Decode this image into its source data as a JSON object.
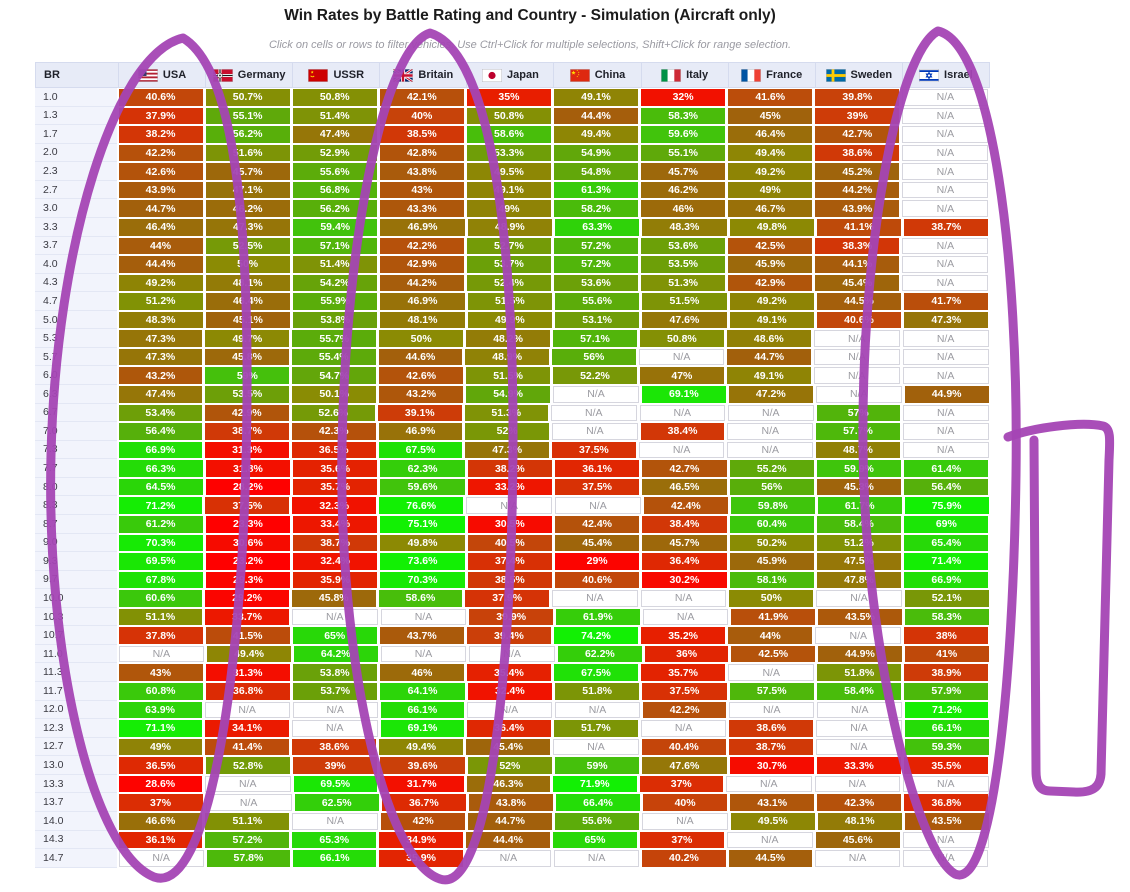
{
  "title": "Win Rates by Battle Rating and Country - Simulation (Aircraft only)",
  "subtitle": "Click on cells or rows to filter vehicles. Use Ctrl+Click for multiple selections, Shift+Click for range selection.",
  "annotation": {
    "color": "#a444b4",
    "shapes": [
      "circle-usa-column",
      "circle-ussr-column",
      "circle-sweden-israel-columns",
      "bracket-right-margin"
    ]
  },
  "chart_data": {
    "type": "heatmap",
    "title": "Win Rates by Battle Rating and Country - Simulation (Aircraft only)",
    "br_label": "BR",
    "na_label": "N/A",
    "value_suffix": "%",
    "color_scale": {
      "low_value": 28,
      "mid_value": 50,
      "high_value": 72,
      "low_color": "#ff0000",
      "mid_color": "#8b8b04",
      "high_color": "#12f004"
    },
    "columns": [
      {
        "label": "USA",
        "flag": "usa"
      },
      {
        "label": "Germany",
        "flag": "germany"
      },
      {
        "label": "USSR",
        "flag": "ussr"
      },
      {
        "label": "Britain",
        "flag": "britain"
      },
      {
        "label": "Japan",
        "flag": "japan"
      },
      {
        "label": "China",
        "flag": "china"
      },
      {
        "label": "Italy",
        "flag": "italy"
      },
      {
        "label": "France",
        "flag": "france"
      },
      {
        "label": "Sweden",
        "flag": "sweden"
      },
      {
        "label": "Israel",
        "flag": "israel"
      }
    ],
    "rows": [
      {
        "br": "1.0",
        "values": [
          40.6,
          50.7,
          50.8,
          42.1,
          35,
          49.1,
          32,
          41.6,
          39.8,
          null
        ]
      },
      {
        "br": "1.3",
        "values": [
          37.9,
          55.1,
          51.4,
          40,
          50.8,
          44.4,
          58.3,
          45,
          39,
          null
        ]
      },
      {
        "br": "1.7",
        "values": [
          38.2,
          56.2,
          47.4,
          38.5,
          58.6,
          49.4,
          59.6,
          46.4,
          42.7,
          null
        ]
      },
      {
        "br": "2.0",
        "values": [
          42.2,
          51.6,
          52.9,
          42.8,
          53.3,
          54.9,
          55.1,
          49.4,
          38.6,
          null
        ]
      },
      {
        "br": "2.3",
        "values": [
          42.6,
          45.7,
          55.6,
          43.8,
          49.5,
          54.8,
          45.7,
          49.2,
          45.2,
          null
        ]
      },
      {
        "br": "2.7",
        "values": [
          43.9,
          47.1,
          56.8,
          43,
          49.1,
          61.3,
          46.2,
          49,
          44.2,
          null
        ]
      },
      {
        "br": "3.0",
        "values": [
          44.7,
          46.2,
          56.2,
          43.3,
          49,
          58.2,
          46,
          46.7,
          43.9,
          null
        ]
      },
      {
        "br": "3.3",
        "values": [
          46.4,
          47.3,
          59.4,
          46.9,
          48.9,
          63.3,
          48.3,
          49.8,
          41.1,
          38.7
        ]
      },
      {
        "br": "3.7",
        "values": [
          44,
          52.5,
          57.1,
          42.2,
          52.7,
          57.2,
          53.6,
          42.5,
          38.3,
          null
        ]
      },
      {
        "br": "4.0",
        "values": [
          44.4,
          50,
          51.4,
          42.9,
          53.7,
          57.2,
          53.5,
          45.9,
          44.1,
          null
        ]
      },
      {
        "br": "4.3",
        "values": [
          49.2,
          48.1,
          54.2,
          44.2,
          52.4,
          53.6,
          51.3,
          42.9,
          45.4,
          null
        ]
      },
      {
        "br": "4.7",
        "values": [
          51.2,
          46.4,
          55.9,
          46.9,
          51.5,
          55.6,
          51.5,
          49.2,
          44.5,
          41.7
        ]
      },
      {
        "br": "5.0",
        "values": [
          48.3,
          45.1,
          53.8,
          48.1,
          49.9,
          53.1,
          47.6,
          49.1,
          40.6,
          47.3
        ]
      },
      {
        "br": "5.3",
        "values": [
          47.3,
          49.7,
          55.7,
          50,
          48.2,
          57.1,
          50.8,
          48.6,
          null,
          null
        ]
      },
      {
        "br": "5.7",
        "values": [
          47.3,
          45.8,
          55.4,
          44.6,
          48.9,
          56,
          null,
          44.7,
          null,
          null
        ]
      },
      {
        "br": "6.0",
        "values": [
          43.2,
          59,
          54.7,
          42.6,
          51.5,
          52.2,
          47,
          49.1,
          null,
          null
        ]
      },
      {
        "br": "6.3",
        "values": [
          47.4,
          53.5,
          50.1,
          43.2,
          54.9,
          null,
          69.1,
          47.2,
          null,
          44.9
        ]
      },
      {
        "br": "6.7",
        "values": [
          53.4,
          42.9,
          52.6,
          39.1,
          51.3,
          null,
          null,
          null,
          57,
          null
        ]
      },
      {
        "br": "7.0",
        "values": [
          56.4,
          38.7,
          42.3,
          46.9,
          52,
          null,
          38.4,
          null,
          57.7,
          null
        ]
      },
      {
        "br": "7.3",
        "values": [
          66.9,
          31.3,
          36.5,
          67.5,
          47.3,
          37.5,
          null,
          null,
          48.7,
          null
        ]
      },
      {
        "br": "7.7",
        "values": [
          66.3,
          31.8,
          35.6,
          62.3,
          38.2,
          36.1,
          42.7,
          55.2,
          59.9,
          61.4
        ]
      },
      {
        "br": "8.0",
        "values": [
          64.5,
          28.2,
          35.7,
          59.6,
          33.2,
          37.5,
          46.5,
          56,
          45.3,
          56.4
        ]
      },
      {
        "br": "8.3",
        "values": [
          71.2,
          37.5,
          32.3,
          76.6,
          null,
          null,
          42.4,
          59.8,
          61.7,
          75.9
        ]
      },
      {
        "br": "8.7",
        "values": [
          61.2,
          23.3,
          33.4,
          75.1,
          30.5,
          42.4,
          38.4,
          60.4,
          58.4,
          69
        ]
      },
      {
        "br": "9.0",
        "values": [
          70.3,
          30.6,
          38.7,
          49.8,
          40.5,
          45.4,
          45.7,
          50.2,
          51.2,
          65.4
        ]
      },
      {
        "br": "9.3",
        "values": [
          69.5,
          23.2,
          32.4,
          73.6,
          37.4,
          29,
          36.4,
          45.9,
          47.5,
          71.4
        ]
      },
      {
        "br": "9.7",
        "values": [
          67.8,
          29.3,
          35.9,
          70.3,
          38.5,
          40.6,
          30.2,
          58.1,
          47.8,
          66.9
        ]
      },
      {
        "br": "10.0",
        "values": [
          60.6,
          29.2,
          45.8,
          58.6,
          37.9,
          null,
          null,
          50,
          null,
          52.1
        ]
      },
      {
        "br": "10.3",
        "values": [
          51.1,
          33.7,
          null,
          null,
          39.9,
          61.9,
          null,
          41.9,
          43.5,
          58.3
        ]
      },
      {
        "br": "10.7",
        "values": [
          37.8,
          41.5,
          65,
          43.7,
          39.4,
          74.2,
          35.2,
          44,
          null,
          38
        ]
      },
      {
        "br": "11.0",
        "values": [
          null,
          49.4,
          64.2,
          null,
          null,
          62.2,
          36,
          42.5,
          44.9,
          41
        ]
      },
      {
        "br": "11.3",
        "values": [
          43,
          31.3,
          53.8,
          46,
          35.4,
          67.5,
          35.7,
          null,
          51.8,
          38.9
        ]
      },
      {
        "br": "11.7",
        "values": [
          60.8,
          36.8,
          53.7,
          64.1,
          32.4,
          51.8,
          37.5,
          57.5,
          58.4,
          57.9
        ]
      },
      {
        "br": "12.0",
        "values": [
          63.9,
          null,
          null,
          66.1,
          null,
          null,
          42.2,
          null,
          null,
          71.2
        ]
      },
      {
        "br": "12.3",
        "values": [
          71.1,
          34.1,
          null,
          69.1,
          36.4,
          51.7,
          null,
          38.6,
          null,
          66.1
        ]
      },
      {
        "br": "12.7",
        "values": [
          49,
          41.4,
          38.6,
          49.4,
          45.4,
          null,
          40.4,
          38.7,
          null,
          59.3
        ]
      },
      {
        "br": "13.0",
        "values": [
          36.5,
          52.8,
          39,
          39.6,
          52,
          59,
          47.6,
          30.7,
          33.3,
          35.5
        ]
      },
      {
        "br": "13.3",
        "values": [
          28.6,
          null,
          69.5,
          31.7,
          46.3,
          71.9,
          37,
          null,
          null,
          null
        ]
      },
      {
        "br": "13.7",
        "values": [
          37,
          null,
          62.5,
          36.7,
          43.8,
          66.4,
          40,
          43.1,
          42.3,
          36.8
        ]
      },
      {
        "br": "14.0",
        "values": [
          46.6,
          51.1,
          null,
          42,
          44.7,
          55.6,
          null,
          49.5,
          48.1,
          43.5
        ]
      },
      {
        "br": "14.3",
        "values": [
          36.1,
          57.2,
          65.3,
          34.9,
          44.4,
          65,
          37,
          null,
          45.6,
          null
        ]
      },
      {
        "br": "14.7",
        "values": [
          null,
          57.8,
          66.1,
          35.9,
          null,
          null,
          40.2,
          44.5,
          null,
          null
        ]
      }
    ]
  }
}
